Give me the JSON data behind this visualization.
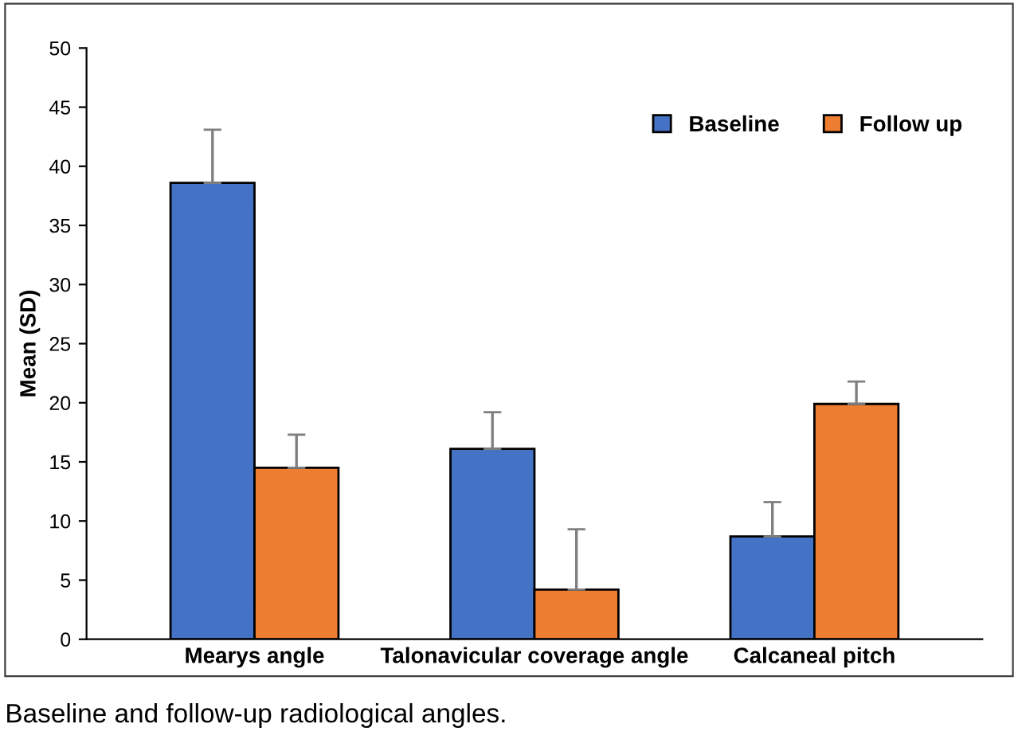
{
  "chart_data": {
    "type": "bar",
    "ylabel": "Mean (SD)",
    "categories": [
      "Mearys angle",
      "Talonavicular coverage angle",
      "Calcaneal pitch"
    ],
    "series": [
      {
        "name": "Baseline",
        "color": "#4472c4",
        "values": [
          38.6,
          16.1,
          8.7
        ],
        "errors": [
          [
            38.6,
            43.1
          ],
          [
            16.1,
            19.2
          ],
          [
            8.7,
            11.6
          ]
        ]
      },
      {
        "name": "Follow up",
        "color": "#ed7d31",
        "values": [
          14.5,
          4.2,
          19.9
        ],
        "errors": [
          [
            14.5,
            17.3
          ],
          [
            4.2,
            9.3
          ],
          [
            19.9,
            21.8
          ]
        ]
      }
    ],
    "ylim": [
      0,
      50
    ],
    "yticks": [
      0,
      5,
      10,
      15,
      20,
      25,
      30,
      35,
      40,
      45,
      50
    ],
    "grid": false,
    "legend": "top right",
    "annotations": [
      "Baseline and follow-up radiological angles."
    ]
  }
}
